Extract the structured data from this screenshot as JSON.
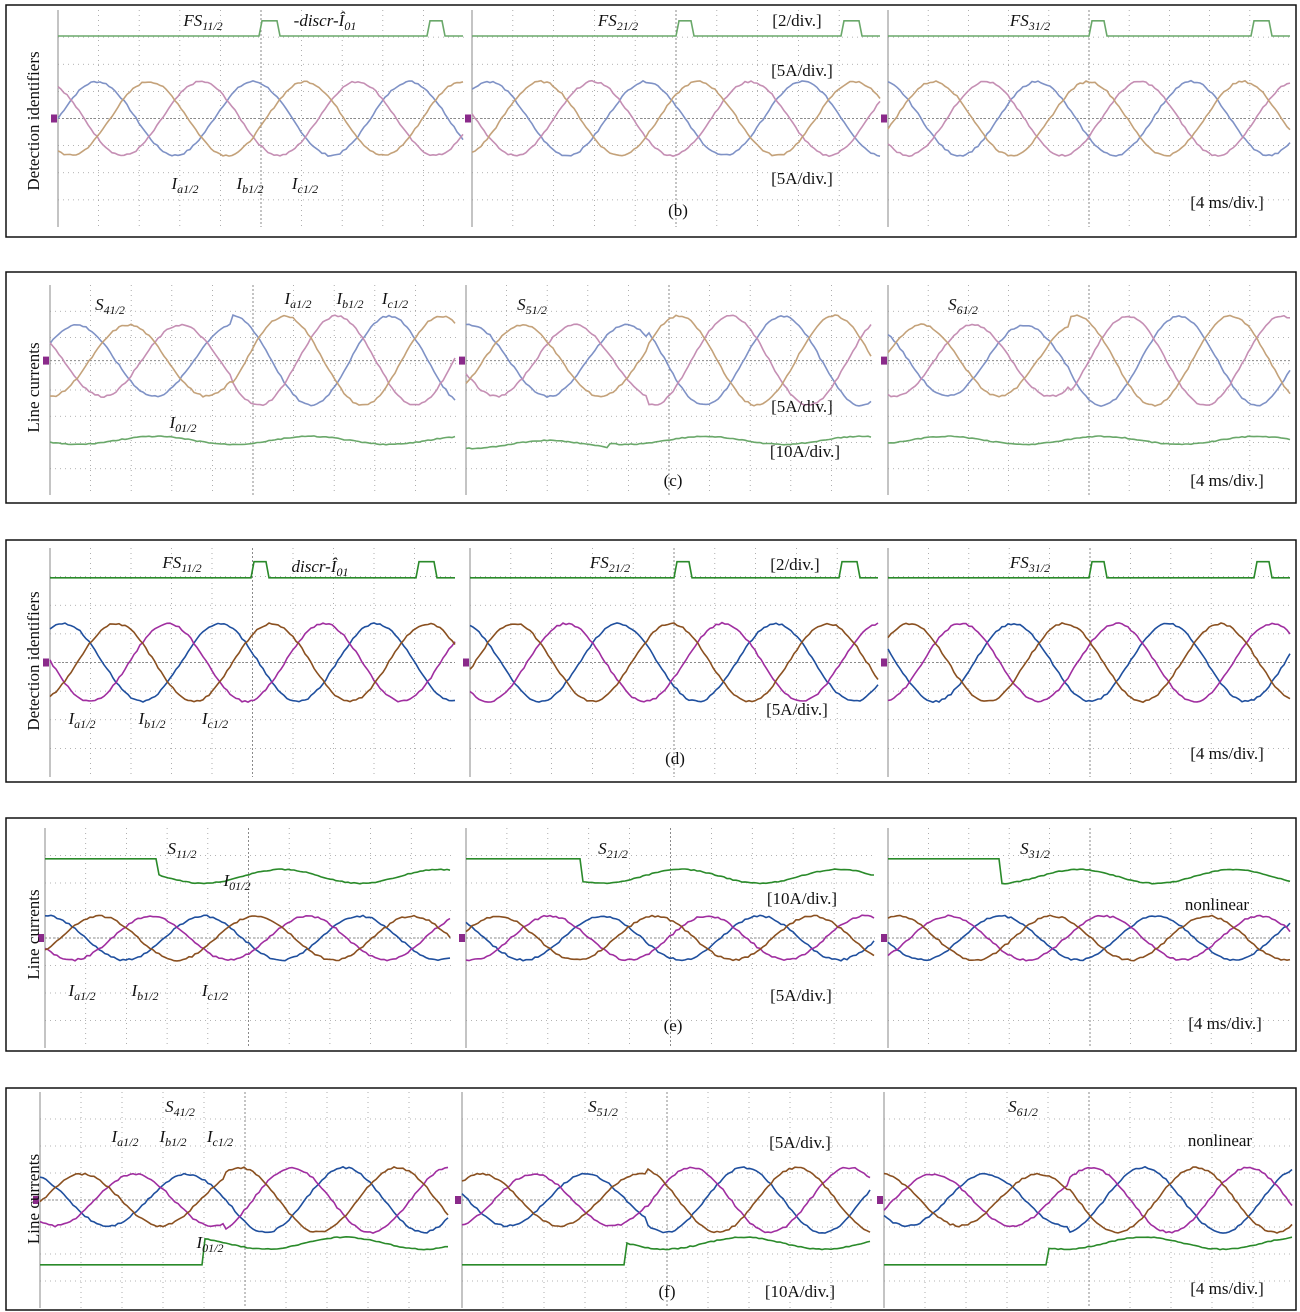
{
  "rows": [
    {
      "side_label": "Detection identifiers",
      "labels": [
        {
          "text": "FS",
          "sub": "11/2"
        },
        {
          "text": "-discr-Î",
          "sub": "01"
        },
        {
          "text": "FS",
          "sub": "21/2"
        },
        {
          "text": "[2/div.]"
        },
        {
          "text": "FS",
          "sub": "31/2"
        },
        {
          "text": "[5A/div.]"
        },
        {
          "text": "[5A/div.]"
        },
        {
          "text": "I",
          "sub": "a1/2"
        },
        {
          "text": "I",
          "sub": "b1/2"
        },
        {
          "text": "I",
          "sub": "c1/2"
        },
        {
          "text": "(b)"
        },
        {
          "text": "[4 ms/div.]"
        }
      ]
    },
    {
      "side_label": "Line currents",
      "labels": [
        {
          "text": "S",
          "sub": "41/2"
        },
        {
          "text": "I",
          "sub": "a1/2"
        },
        {
          "text": "I",
          "sub": "b1/2"
        },
        {
          "text": "I",
          "sub": "c1/2"
        },
        {
          "text": "S",
          "sub": "51/2"
        },
        {
          "text": "S",
          "sub": "61/2"
        },
        {
          "text": "[5A/div.]"
        },
        {
          "text": "I",
          "sub": "01/2"
        },
        {
          "text": "[10A/div.]"
        },
        {
          "text": "(c)"
        },
        {
          "text": "[4 ms/div.]"
        }
      ]
    },
    {
      "side_label": "Detection identifiers",
      "labels": [
        {
          "text": "FS",
          "sub": "11/2"
        },
        {
          "text": "discr-Î",
          "sub": "01"
        },
        {
          "text": "FS",
          "sub": "21/2"
        },
        {
          "text": "[2/div.]"
        },
        {
          "text": "FS",
          "sub": "31/2"
        },
        {
          "text": "I",
          "sub": "a1/2"
        },
        {
          "text": "I",
          "sub": "b1/2"
        },
        {
          "text": "I",
          "sub": "c1/2"
        },
        {
          "text": "[5A/div.]"
        },
        {
          "text": "(d)"
        },
        {
          "text": "[4 ms/div.]"
        }
      ]
    },
    {
      "side_label": "Line currents",
      "labels": [
        {
          "text": "S",
          "sub": "11/2"
        },
        {
          "text": "I",
          "sub": "01/2"
        },
        {
          "text": "S",
          "sub": "21/2"
        },
        {
          "text": "S",
          "sub": "31/2"
        },
        {
          "text": "[10A/div.]"
        },
        {
          "text": "nonlinear"
        },
        {
          "text": "I",
          "sub": "a1/2"
        },
        {
          "text": "I",
          "sub": "b1/2"
        },
        {
          "text": "I",
          "sub": "c1/2"
        },
        {
          "text": "[5A/div.]"
        },
        {
          "text": "(e)"
        },
        {
          "text": "[4 ms/div.]"
        }
      ]
    },
    {
      "side_label": "Line currents",
      "labels": [
        {
          "text": "S",
          "sub": "41/2"
        },
        {
          "text": "I",
          "sub": "a1/2"
        },
        {
          "text": "I",
          "sub": "b1/2"
        },
        {
          "text": "I",
          "sub": "c1/2"
        },
        {
          "text": "S",
          "sub": "51/2"
        },
        {
          "text": "S",
          "sub": "61/2"
        },
        {
          "text": "[5A/div.]"
        },
        {
          "text": "nonlinear"
        },
        {
          "text": "I",
          "sub": "01/2"
        },
        {
          "text": "(f)"
        },
        {
          "text": "[10A/div.]"
        },
        {
          "text": "[4 ms/div.]"
        }
      ]
    }
  ]
}
